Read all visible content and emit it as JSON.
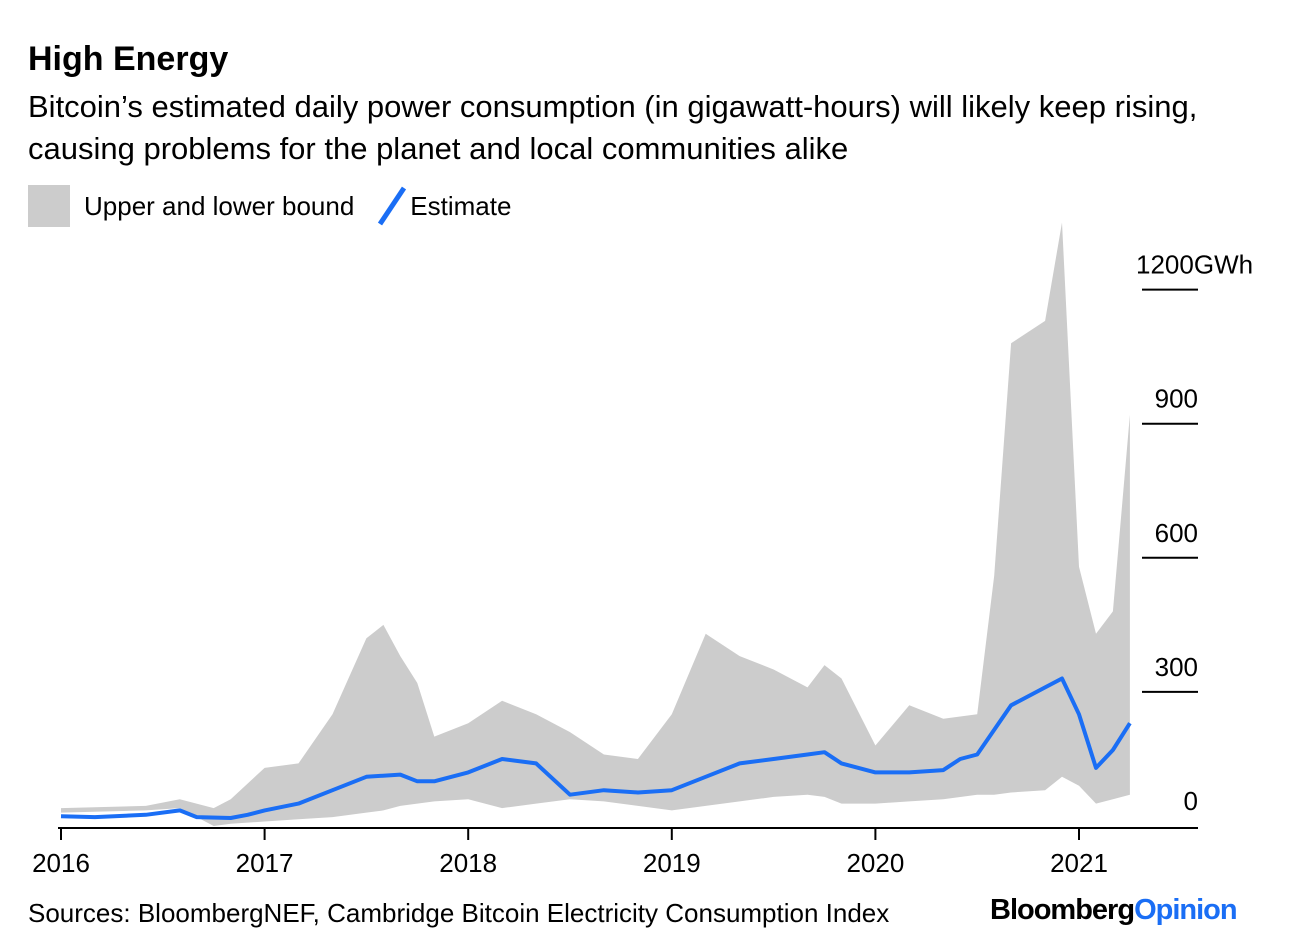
{
  "title": "High Energy",
  "subtitle": "Bitcoin’s estimated daily power consumption (in gigawatt-hours) will likely keep rising, causing problems for the planet and local communities alike",
  "legend": {
    "band_label": "Upper and lower bound",
    "line_label": "Estimate"
  },
  "footer": {
    "sources": "Sources: BloombergNEF, Cambridge Bitcoin Electricity Consumption Index"
  },
  "brand": {
    "name": "Bloomberg",
    "suffix": "Opinion"
  },
  "colors": {
    "band": "#cccccc",
    "estimate": "#1a6ef5",
    "axis": "#000000"
  },
  "chart_data": {
    "type": "area",
    "title": "High Energy",
    "xlabel": "",
    "ylabel": "",
    "y_unit": "GWh",
    "ylim": [
      0,
      1200
    ],
    "y_ticks": [
      0,
      300,
      600,
      900,
      1200
    ],
    "y_tick_labels": [
      "0",
      "300",
      "600",
      "900",
      "1200GWh"
    ],
    "x_ticks": [
      "2016",
      "2017",
      "2018",
      "2019",
      "2020",
      "2021"
    ],
    "x_range": [
      "2016-01",
      "2021-07"
    ],
    "y_axis_side": "right",
    "grid": false,
    "legend_position": "top-left",
    "series": [
      {
        "name": "Upper and lower bound",
        "kind": "band",
        "x": [
          "2016-01",
          "2016-06",
          "2016-08",
          "2016-10",
          "2016-11",
          "2017-01",
          "2017-03",
          "2017-05",
          "2017-07",
          "2017-08",
          "2017-09",
          "2017-10",
          "2017-11",
          "2018-01",
          "2018-03",
          "2018-05",
          "2018-07",
          "2018-09",
          "2018-11",
          "2019-01",
          "2019-03",
          "2019-05",
          "2019-07",
          "2019-09",
          "2019-10",
          "2019-11",
          "2020-01",
          "2020-03",
          "2020-05",
          "2020-07",
          "2020-08",
          "2020-09",
          "2020-11",
          "2020-12",
          "2021-01",
          "2021-02",
          "2021-03",
          "2021-04"
        ],
        "lower": [
          30,
          35,
          40,
          0,
          5,
          10,
          15,
          20,
          30,
          35,
          45,
          50,
          55,
          60,
          40,
          50,
          60,
          55,
          45,
          35,
          45,
          55,
          65,
          70,
          65,
          50,
          50,
          55,
          60,
          70,
          70,
          75,
          80,
          110,
          90,
          50,
          60,
          70
        ],
        "upper": [
          40,
          45,
          60,
          40,
          60,
          130,
          140,
          250,
          420,
          450,
          380,
          320,
          200,
          230,
          280,
          250,
          210,
          160,
          150,
          250,
          430,
          380,
          350,
          310,
          360,
          330,
          180,
          270,
          240,
          250,
          560,
          1080,
          1130,
          1350,
          580,
          430,
          480,
          920
        ]
      },
      {
        "name": "Estimate",
        "kind": "line",
        "x": [
          "2016-01",
          "2016-03",
          "2016-06",
          "2016-08",
          "2016-09",
          "2016-11",
          "2016-12",
          "2017-01",
          "2017-03",
          "2017-05",
          "2017-07",
          "2017-09",
          "2017-10",
          "2017-11",
          "2018-01",
          "2018-03",
          "2018-05",
          "2018-07",
          "2018-09",
          "2018-11",
          "2019-01",
          "2019-03",
          "2019-05",
          "2019-07",
          "2019-09",
          "2019-10",
          "2019-11",
          "2020-01",
          "2020-03",
          "2020-05",
          "2020-06",
          "2020-07",
          "2020-09",
          "2020-11",
          "2020-12",
          "2021-01",
          "2021-02",
          "2021-03",
          "2021-04"
        ],
        "y": [
          22,
          20,
          25,
          35,
          20,
          18,
          25,
          35,
          50,
          80,
          110,
          115,
          100,
          100,
          120,
          150,
          140,
          70,
          80,
          75,
          80,
          110,
          140,
          150,
          160,
          165,
          140,
          120,
          120,
          125,
          150,
          160,
          270,
          310,
          330,
          250,
          130,
          170,
          230
        ]
      }
    ]
  }
}
